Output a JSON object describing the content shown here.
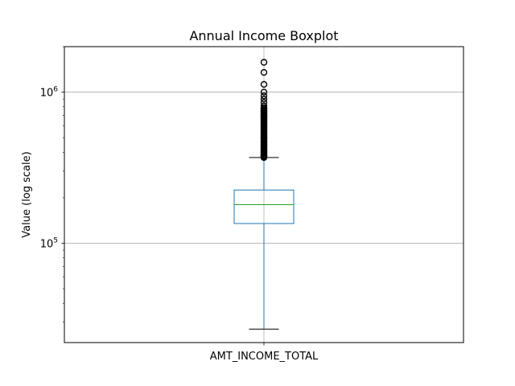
{
  "chart_data": {
    "type": "boxplot",
    "title": "Annual Income Boxplot",
    "xlabel": "",
    "ylabel": "Value (log scale)",
    "yscale": "log",
    "ylim": [
      22000,
      2000000
    ],
    "grid": true,
    "categories": [
      "AMT_INCOME_TOTAL"
    ],
    "yticks": [
      {
        "value": 100000,
        "base": "10",
        "exp": "5"
      },
      {
        "value": 1000000,
        "base": "10",
        "exp": "6"
      }
    ],
    "boxes": [
      {
        "name": "AMT_INCOME_TOTAL",
        "whisker_low": 27000,
        "q1": 135000,
        "median": 180000,
        "q3": 225000,
        "whisker_high": 369000,
        "outliers": [
          1575000,
          1350000,
          1125000,
          1000000,
          945000,
          900000,
          855000,
          810000,
          787500,
          765000,
          742500,
          720000,
          697500,
          675000,
          652500,
          630000,
          607500,
          585000,
          562500,
          540000,
          517500,
          495000,
          472500,
          450000,
          432000,
          414000,
          405000,
          396000,
          382500,
          378000,
          373500
        ]
      }
    ],
    "colors": {
      "box": "#1f77b4",
      "median": "#2ca02c",
      "whisker": "#1f77b4",
      "cap": "#000000",
      "outlier": "#000000",
      "grid": "#b0b0b0"
    }
  }
}
